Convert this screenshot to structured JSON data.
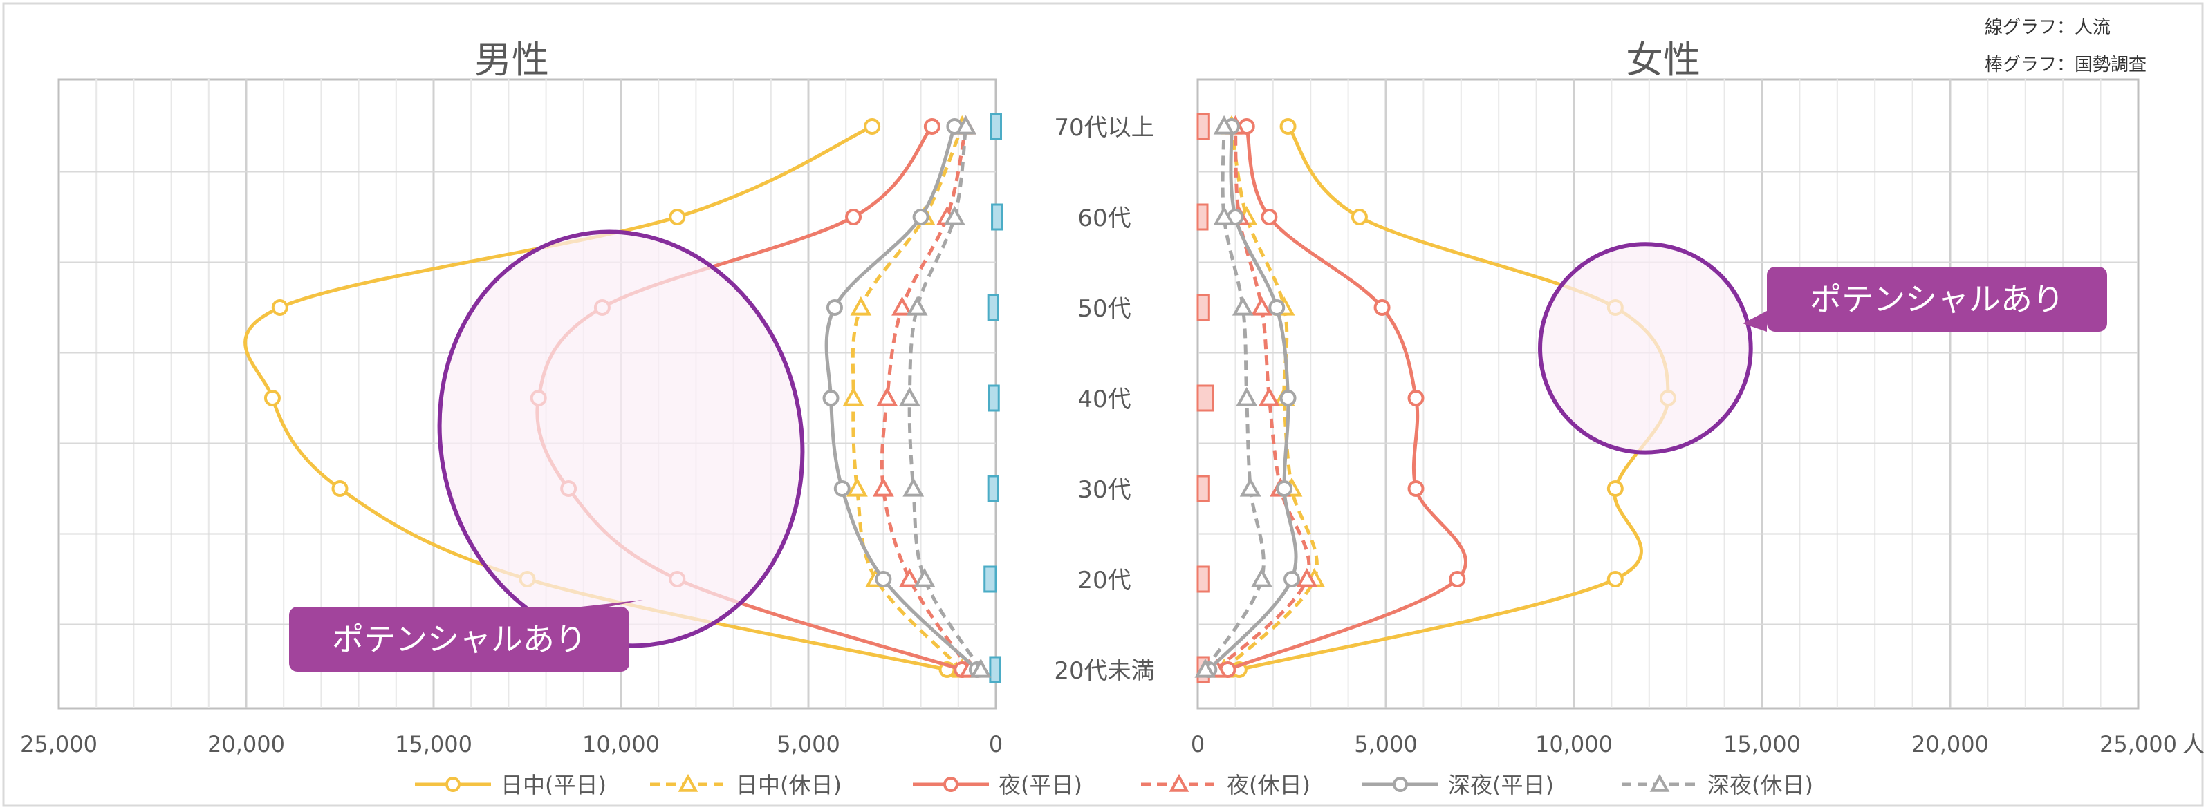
{
  "note": {
    "line1": "線グラフ：人流",
    "line2": "棒グラフ：国勢調査"
  },
  "unit_label": "人",
  "potential_label": "ポテンシャルあり",
  "chart_data": {
    "type": "line",
    "orientation": "horizontal-population-pyramid",
    "age_groups": [
      "20代未満",
      "20代",
      "30代",
      "40代",
      "50代",
      "60代",
      "70代以上"
    ],
    "series_meta": [
      {
        "name": "日中(平日)",
        "color": "#F5C242",
        "dash": "solid",
        "marker": "circle"
      },
      {
        "name": "日中(休日)",
        "color": "#F5C242",
        "dash": "dashed",
        "marker": "triangle"
      },
      {
        "name": "夜(平日)",
        "color": "#EE7B6A",
        "dash": "solid",
        "marker": "circle"
      },
      {
        "name": "夜(休日)",
        "color": "#EE7B6A",
        "dash": "dashed",
        "marker": "triangle"
      },
      {
        "name": "深夜(平日)",
        "color": "#A6A6A6",
        "dash": "solid",
        "marker": "circle"
      },
      {
        "name": "深夜(休日)",
        "color": "#A6A6A6",
        "dash": "dashed",
        "marker": "triangle"
      }
    ],
    "panels": [
      {
        "title": "男性",
        "direction": "reversed",
        "xlim": [
          0,
          25000
        ],
        "xticks": [
          "25,000",
          "20,000",
          "15,000",
          "10,000",
          "5,000",
          "0"
        ],
        "bar_color": "#B4DDEB",
        "bar_border": "#4BACC6",
        "bars": [
          150,
          300,
          200,
          180,
          200,
          100,
          120
        ],
        "series": [
          {
            "name": "日中(平日)",
            "values": [
              1300,
              12500,
              17500,
              19300,
              19100,
              8500,
              3300
            ]
          },
          {
            "name": "日中(休日)",
            "values": [
              900,
              3200,
              3700,
              3800,
              3600,
              1900,
              900
            ]
          },
          {
            "name": "夜(平日)",
            "values": [
              900,
              8500,
              11400,
              12200,
              10500,
              3800,
              1700
            ]
          },
          {
            "name": "夜(休日)",
            "values": [
              700,
              2300,
              3000,
              2900,
              2500,
              1300,
              800
            ]
          },
          {
            "name": "深夜(平日)",
            "values": [
              500,
              3000,
              4100,
              4400,
              4300,
              2000,
              1100
            ]
          },
          {
            "name": "深夜(休日)",
            "values": [
              400,
              1900,
              2200,
              2300,
              2100,
              1100,
              800
            ]
          }
        ],
        "highlight": {
          "label": "ポテンシャルあり",
          "center_value": 10000,
          "center_age": 2.55,
          "rx": 4800,
          "ry": 2.3,
          "angle": -13
        }
      },
      {
        "title": "女性",
        "direction": "normal",
        "xlim": [
          0,
          25000
        ],
        "xticks": [
          "0",
          "5,000",
          "10,000",
          "15,000",
          "20,000",
          "25,000"
        ],
        "bar_color": "#FAD0CC",
        "bar_border": "#EE7B6A",
        "bars": [
          300,
          300,
          300,
          400,
          300,
          150,
          300
        ],
        "series": [
          {
            "name": "日中(平日)",
            "values": [
              1100,
              11100,
              11100,
              12500,
              11100,
              4300,
              2400
            ]
          },
          {
            "name": "日中(休日)",
            "values": [
              700,
              3100,
              2500,
              2300,
              2300,
              1300,
              900
            ]
          },
          {
            "name": "夜(平日)",
            "values": [
              800,
              6900,
              5800,
              5800,
              4900,
              1900,
              1300
            ]
          },
          {
            "name": "夜(休日)",
            "values": [
              500,
              2900,
              2200,
              1900,
              1700,
              1100,
              1000
            ]
          },
          {
            "name": "深夜(平日)",
            "values": [
              300,
              2500,
              2300,
              2400,
              2100,
              1000,
              900
            ]
          },
          {
            "name": "深夜(休日)",
            "values": [
              200,
              1700,
              1400,
              1300,
              1200,
              700,
              700
            ]
          }
        ],
        "highlight": {
          "label": "ポテンシャルあり",
          "center_value": 11900,
          "center_age": 3.55,
          "rx": 2800,
          "ry": 1.15,
          "angle": 0
        }
      }
    ],
    "legend_position": "bottom",
    "grid": true
  }
}
